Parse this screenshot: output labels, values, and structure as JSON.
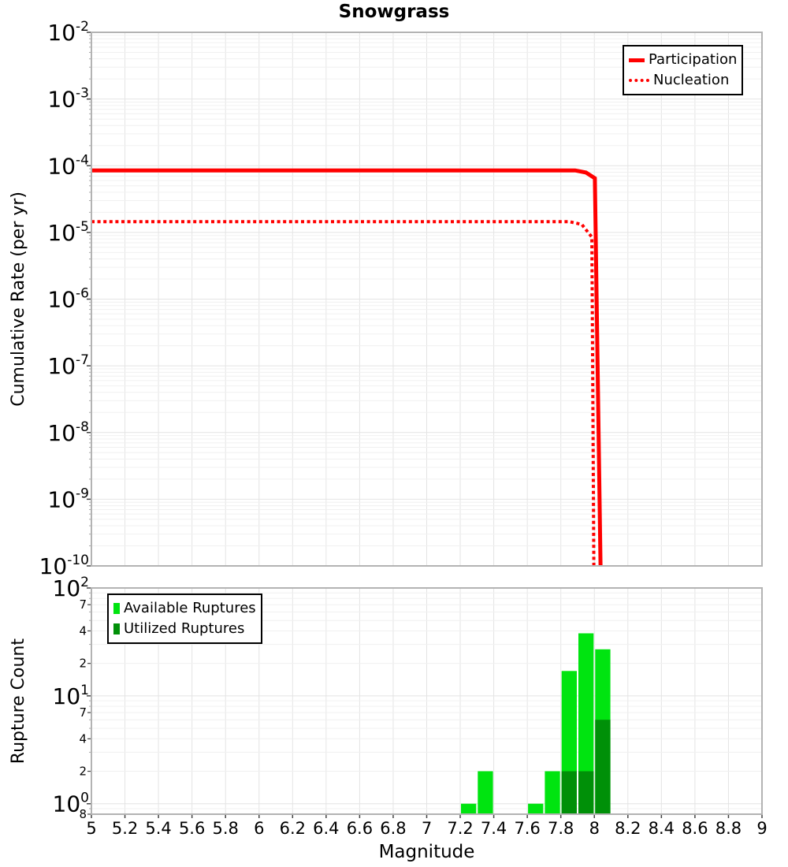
{
  "title": "Snowgrass",
  "axes": {
    "xlabel": "Magnitude",
    "top_ylabel": "Cumulative Rate (per yr)",
    "bottom_ylabel": "Rupture Count"
  },
  "legends": {
    "rate": [
      {
        "label": "Participation",
        "swatch": "solid-red-line"
      },
      {
        "label": "Nucleation",
        "swatch": "dotted-red-line"
      }
    ],
    "rupture": [
      {
        "label": "Available Ruptures",
        "swatch": "bright-green-square"
      },
      {
        "label": "Utilized Ruptures",
        "swatch": "dark-green-square"
      }
    ]
  },
  "colors": {
    "line_red": "#ff0000",
    "available_green": "#00e410",
    "utilized_green": "#009008",
    "grid_major": "#e4e4e4",
    "grid_minor": "#f0f0f0",
    "frame": "#b3b3b3",
    "tick": "#444444"
  },
  "chart_data": [
    {
      "type": "line",
      "panel": "top",
      "title": "Snowgrass",
      "ylabel": "Cumulative Rate (per yr)",
      "xlabel": "Magnitude",
      "x_range": [
        5,
        9
      ],
      "y_range": [
        1e-10,
        0.01
      ],
      "y_scale": "log",
      "grid": true,
      "legend_position": "top-right",
      "y_decade_exponents": [
        -2,
        -3,
        -4,
        -5,
        -6,
        -7,
        -8,
        -9,
        -10
      ],
      "series": [
        {
          "name": "Participation",
          "style": "solid",
          "color": "#ff0000",
          "line_width": 5,
          "points": [
            [
              5,
              8.5e-05
            ],
            [
              7.885,
              8.5e-05
            ],
            [
              7.95,
              7.9e-05
            ],
            [
              8.003,
              6.5e-05
            ],
            [
              8.037,
              1e-10
            ]
          ]
        },
        {
          "name": "Nucleation",
          "style": "dotted",
          "color": "#ff0000",
          "line_width": 4,
          "points": [
            [
              5,
              1.45e-05
            ],
            [
              7.85,
              1.45e-05
            ],
            [
              7.925,
              1.32e-05
            ],
            [
              7.985,
              8.5e-06
            ],
            [
              7.997,
              1e-10
            ]
          ]
        }
      ]
    },
    {
      "type": "bar",
      "panel": "bottom",
      "ylabel": "Rupture Count",
      "xlabel": "Magnitude",
      "x_range": [
        5,
        9
      ],
      "y_range": [
        0.8,
        100
      ],
      "y_scale": "log",
      "grid": true,
      "bin_width": 0.1,
      "legend_position": "top-left",
      "y_decade_exponents": [
        2,
        1,
        0
      ],
      "y_minor_labels": [
        [
          "7",
          70
        ],
        [
          "4",
          40
        ],
        [
          "2",
          20
        ],
        [
          "7",
          7
        ],
        [
          "4",
          4
        ],
        [
          "2",
          2
        ],
        [
          "8",
          0.8
        ]
      ],
      "x_tick_labels": [
        "5",
        "5.2",
        "5.4",
        "5.6",
        "5.8",
        "6",
        "6.2",
        "6.4",
        "6.6",
        "6.8",
        "7",
        "7.2",
        "7.4",
        "7.6",
        "7.8",
        "8",
        "8.2",
        "8.4",
        "8.6",
        "8.8",
        "9"
      ],
      "series": [
        {
          "name": "Available Ruptures",
          "color": "#00e410",
          "bins": [
            [
              7.2,
              1
            ],
            [
              7.3,
              2
            ],
            [
              7.6,
              1
            ],
            [
              7.7,
              2
            ],
            [
              7.8,
              17
            ],
            [
              7.9,
              38
            ],
            [
              8.0,
              27
            ]
          ]
        },
        {
          "name": "Utilized Ruptures",
          "color": "#009008",
          "bins": [
            [
              7.8,
              2
            ],
            [
              7.9,
              2
            ],
            [
              8.0,
              6
            ]
          ]
        }
      ]
    }
  ]
}
